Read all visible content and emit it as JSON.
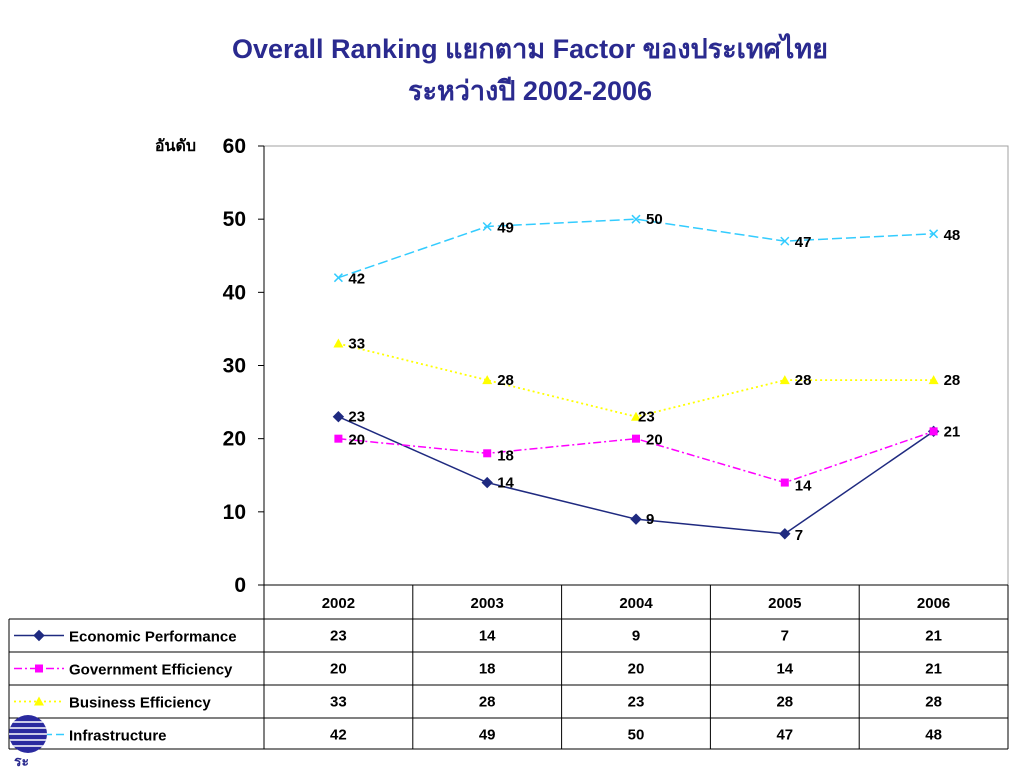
{
  "title": {
    "line1": "Overall Ranking แยกตาม Factor ของประเทศไทย",
    "line2": "ระหว่างปี 2002-2006"
  },
  "colors": {
    "title": "#2a2a8f",
    "economic": "#1f2a80",
    "government": "#ff00ff",
    "business": "#ffff00",
    "infrastructure": "#33ccff"
  },
  "chart_data": {
    "type": "line",
    "title": "Overall Ranking แยกตาม Factor ของประเทศไทย ระหว่างปี 2002-2006",
    "ylabel": "อันดับ",
    "xlabel": "",
    "ylim": [
      0,
      60
    ],
    "yticks": [
      0,
      10,
      20,
      30,
      40,
      50,
      60
    ],
    "categories": [
      "2002",
      "2003",
      "2004",
      "2005",
      "2006"
    ],
    "grid": false,
    "legend": "data-table-left",
    "series": [
      {
        "name": "Economic Performance",
        "values": [
          23,
          14,
          9,
          7,
          21
        ],
        "color": "#1f2a80",
        "marker": "diamond",
        "line": "solid"
      },
      {
        "name": "Government Efficiency",
        "values": [
          20,
          18,
          20,
          14,
          21
        ],
        "color": "#ff00ff",
        "marker": "square",
        "line": "dashdot"
      },
      {
        "name": "Business Efficiency",
        "values": [
          33,
          28,
          23,
          28,
          28
        ],
        "color": "#ffff00",
        "marker": "triangle",
        "line": "dotted"
      },
      {
        "name": "Infrastructure",
        "values": [
          42,
          49,
          50,
          47,
          48
        ],
        "color": "#33ccff",
        "marker": "x",
        "line": "dashed"
      }
    ]
  },
  "logo": {
    "text": "ระ",
    "icon": "globe-logo-icon"
  }
}
